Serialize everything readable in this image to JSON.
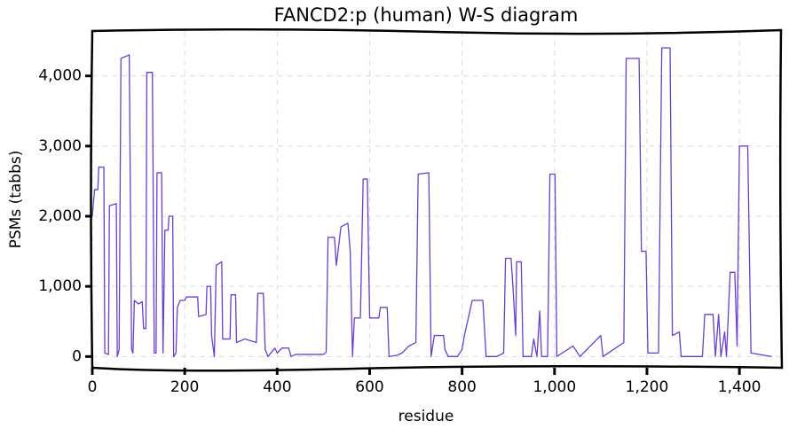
{
  "chart_data": {
    "type": "line",
    "title": "FANCD2:p (human) W-S diagram",
    "xlabel": "residue",
    "ylabel": "PSMs (tabbs)",
    "xlim": [
      0,
      1490
    ],
    "ylim": [
      -160,
      4640
    ],
    "xticks": [
      0,
      200,
      400,
      600,
      800,
      {
        "value": 1000,
        "label": "1,000"
      },
      {
        "value": 1200,
        "label": "1,200"
      },
      {
        "value": 1400,
        "label": "1,400"
      }
    ],
    "yticks": [
      0,
      {
        "value": 1000,
        "label": "1,000"
      },
      {
        "value": 2000,
        "label": "2,000"
      },
      {
        "value": 3000,
        "label": "3,000"
      },
      {
        "value": 4000,
        "label": "4,000"
      }
    ],
    "grid": true,
    "x": [
      0,
      5,
      12,
      14,
      25,
      27,
      35,
      37,
      52,
      54,
      58,
      62,
      80,
      85,
      88,
      91,
      100,
      108,
      111,
      116,
      118,
      130,
      134,
      138,
      140,
      150,
      153,
      157,
      164,
      166,
      174,
      176,
      181,
      184,
      190,
      200,
      204,
      228,
      230,
      246,
      248,
      256,
      258,
      264,
      268,
      280,
      282,
      298,
      300,
      310,
      312,
      330,
      355,
      358,
      370,
      374,
      380,
      395,
      400,
      410,
      425,
      430,
      440,
      500,
      506,
      510,
      524,
      528,
      538,
      553,
      558,
      563,
      567,
      580,
      586,
      595,
      600,
      620,
      623,
      638,
      642,
      660,
      670,
      685,
      700,
      705,
      728,
      733,
      740,
      760,
      763,
      770,
      790,
      800,
      805,
      822,
      845,
      848,
      852,
      875,
      890,
      894,
      906,
      910,
      916,
      918,
      928,
      932,
      950,
      955,
      962,
      968,
      972,
      985,
      990,
      1001,
      1005,
      1040,
      1055,
      1100,
      1105,
      1150,
      1155,
      1183,
      1188,
      1198,
      1202,
      1225,
      1232,
      1250,
      1255,
      1270,
      1274,
      1320,
      1325,
      1343,
      1348,
      1355,
      1360,
      1368,
      1372,
      1380,
      1390,
      1395,
      1400,
      1418,
      1425,
      1470
    ],
    "series": [
      {
        "name": "PSMs",
        "color": "#6a3fd0",
        "values": [
          2000,
          2380,
          2380,
          2700,
          2700,
          50,
          30,
          2150,
          2180,
          0,
          100,
          4250,
          4300,
          100,
          50,
          800,
          750,
          780,
          400,
          400,
          4050,
          4050,
          50,
          50,
          2620,
          2620,
          50,
          1800,
          1800,
          2000,
          2000,
          0,
          50,
          700,
          800,
          800,
          850,
          850,
          570,
          600,
          1000,
          1000,
          300,
          0,
          1300,
          1350,
          250,
          250,
          880,
          880,
          200,
          250,
          200,
          900,
          900,
          100,
          0,
          120,
          50,
          120,
          120,
          0,
          30,
          30,
          60,
          1700,
          1700,
          1300,
          1850,
          1900,
          1500,
          0,
          550,
          550,
          2530,
          2530,
          550,
          550,
          700,
          700,
          0,
          20,
          50,
          150,
          200,
          2600,
          2620,
          0,
          300,
          300,
          100,
          0,
          0,
          100,
          300,
          800,
          800,
          450,
          0,
          0,
          50,
          1400,
          1400,
          1000,
          300,
          1350,
          1350,
          0,
          0,
          250,
          0,
          650,
          0,
          0,
          2600,
          2600,
          0,
          150,
          0,
          300,
          0,
          200,
          4250,
          4250,
          1500,
          1500,
          50,
          50,
          4400,
          4400,
          300,
          350,
          0,
          0,
          600,
          600,
          0,
          600,
          0,
          350,
          0,
          1200,
          1200,
          150,
          3000,
          3000,
          50,
          0
        ]
      }
    ]
  }
}
